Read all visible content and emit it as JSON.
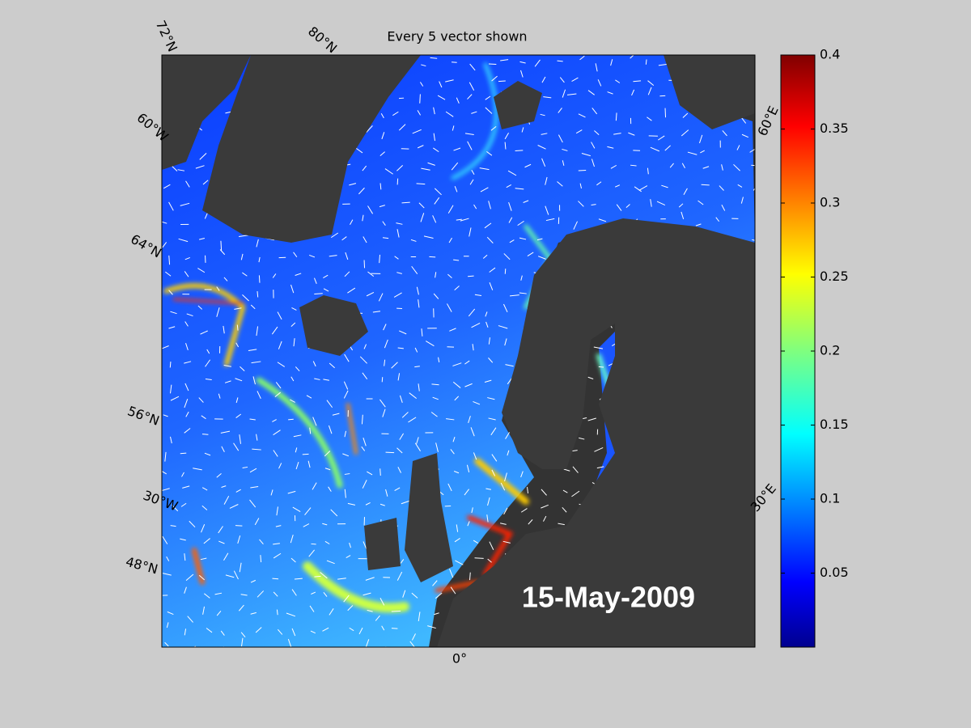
{
  "title": "Every 5 vector shown",
  "date": "15-May-2009",
  "map_labels": [
    "72°N",
    "80°N",
    "60°W",
    "64°N",
    "56°N",
    "30°W",
    "48°N",
    "0°",
    "30°E",
    "60°E"
  ],
  "colorbar": {
    "lim": [
      0,
      0.4
    ],
    "ticks": [
      0.05,
      0.1,
      0.15,
      0.2,
      0.25,
      0.3,
      0.35,
      0.4
    ],
    "colormap": "jet"
  }
}
